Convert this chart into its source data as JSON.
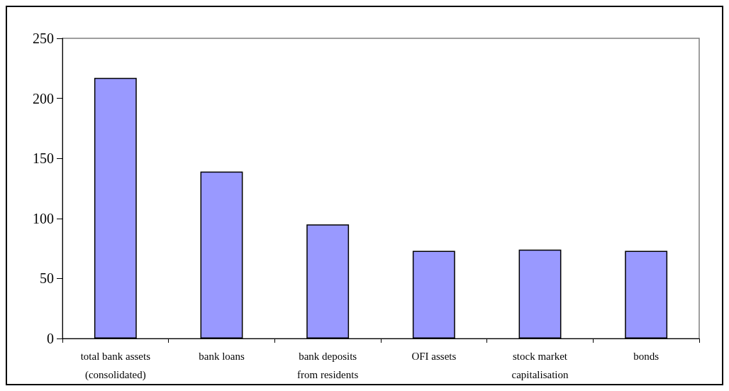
{
  "chart_data": {
    "type": "bar",
    "categories": [
      "total bank assets\n(consolidated)",
      "bank loans",
      "bank deposits\nfrom residents",
      "OFI assets",
      "stock market\ncapitalisation",
      "bonds"
    ],
    "values": [
      217,
      139,
      95,
      73,
      74,
      73
    ],
    "color": "#9999ff",
    "ylim": [
      0,
      250
    ],
    "yticks": [
      0,
      50,
      100,
      150,
      200,
      250
    ],
    "grid": false
  }
}
